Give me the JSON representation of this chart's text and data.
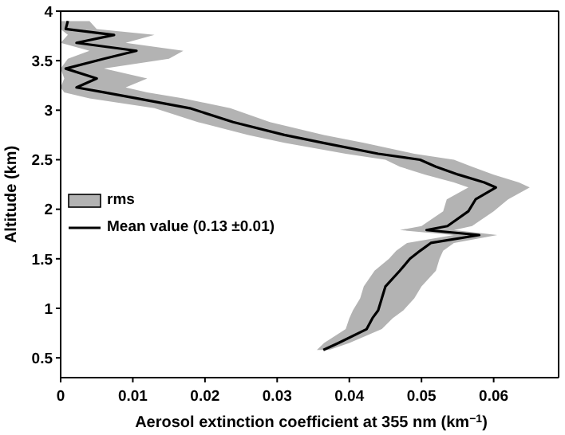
{
  "chart_data": {
    "type": "line",
    "orientation": "horizontal",
    "xlabel": "Aerosol extinction coefficient at 355 nm (km$^{−1}$)",
    "ylabel": "Altitude (km)",
    "annotations": [
      "rms"
    ],
    "x": [
      0.58,
      0.65,
      0.79,
      0.9,
      0.98,
      1.1,
      1.22,
      1.38,
      1.5,
      1.58,
      1.66,
      1.74,
      1.79,
      1.83,
      1.98,
      2.1,
      2.22,
      2.27,
      2.35,
      2.43,
      2.5,
      2.56,
      2.67,
      2.75,
      2.88,
      3.02,
      3.12,
      3.18,
      3.23,
      3.32,
      3.42,
      3.52,
      3.6,
      3.68,
      3.76,
      3.82,
      3.9
    ],
    "series": [
      {
        "name": "Mean value (0.13 ±0.01)",
        "color": "#000000",
        "values": [
          0.0364,
          0.0385,
          0.0424,
          0.0432,
          0.044,
          0.0445,
          0.045,
          0.047,
          0.0484,
          0.0498,
          0.0513,
          0.058,
          0.0507,
          0.0536,
          0.0565,
          0.0575,
          0.0603,
          0.0587,
          0.0551,
          0.052,
          0.0498,
          0.044,
          0.0364,
          0.031,
          0.0239,
          0.0179,
          0.0105,
          0.006,
          0.0022,
          0.005,
          0.0007,
          0.006,
          0.0105,
          0.0022,
          0.0074,
          0.0007,
          0.001
        ],
        "lower": [
          0.0355,
          0.0365,
          0.0395,
          0.04,
          0.0405,
          0.0415,
          0.042,
          0.0435,
          0.0455,
          0.0465,
          0.048,
          0.0545,
          0.047,
          0.05,
          0.053,
          0.0535,
          0.0565,
          0.0545,
          0.0505,
          0.047,
          0.045,
          0.0395,
          0.031,
          0.026,
          0.019,
          0.013,
          0.004,
          0.0005,
          0,
          0.0005,
          0,
          0.001,
          0.004,
          0,
          0.001,
          0,
          0
        ],
        "upper": [
          0.0372,
          0.04,
          0.0445,
          0.046,
          0.0475,
          0.049,
          0.05,
          0.052,
          0.0525,
          0.053,
          0.0545,
          0.0605,
          0.0545,
          0.057,
          0.06,
          0.062,
          0.065,
          0.0635,
          0.06,
          0.057,
          0.0545,
          0.049,
          0.042,
          0.0365,
          0.029,
          0.0235,
          0.017,
          0.012,
          0.009,
          0.012,
          0.006,
          0.015,
          0.017,
          0.009,
          0.013,
          0.005,
          0.004
        ]
      }
    ],
    "xlim": [
      0,
      0.069
    ],
    "xticks": [
      0,
      0.01,
      0.02,
      0.03,
      0.04,
      0.05,
      0.06
    ],
    "ylim": [
      0.3,
      4
    ],
    "yticks": [
      0.5,
      1,
      1.5,
      2,
      2.5,
      3,
      3.5,
      4
    ],
    "legend": "left",
    "grid": false,
    "marker": "none",
    "line_style": "solid"
  }
}
